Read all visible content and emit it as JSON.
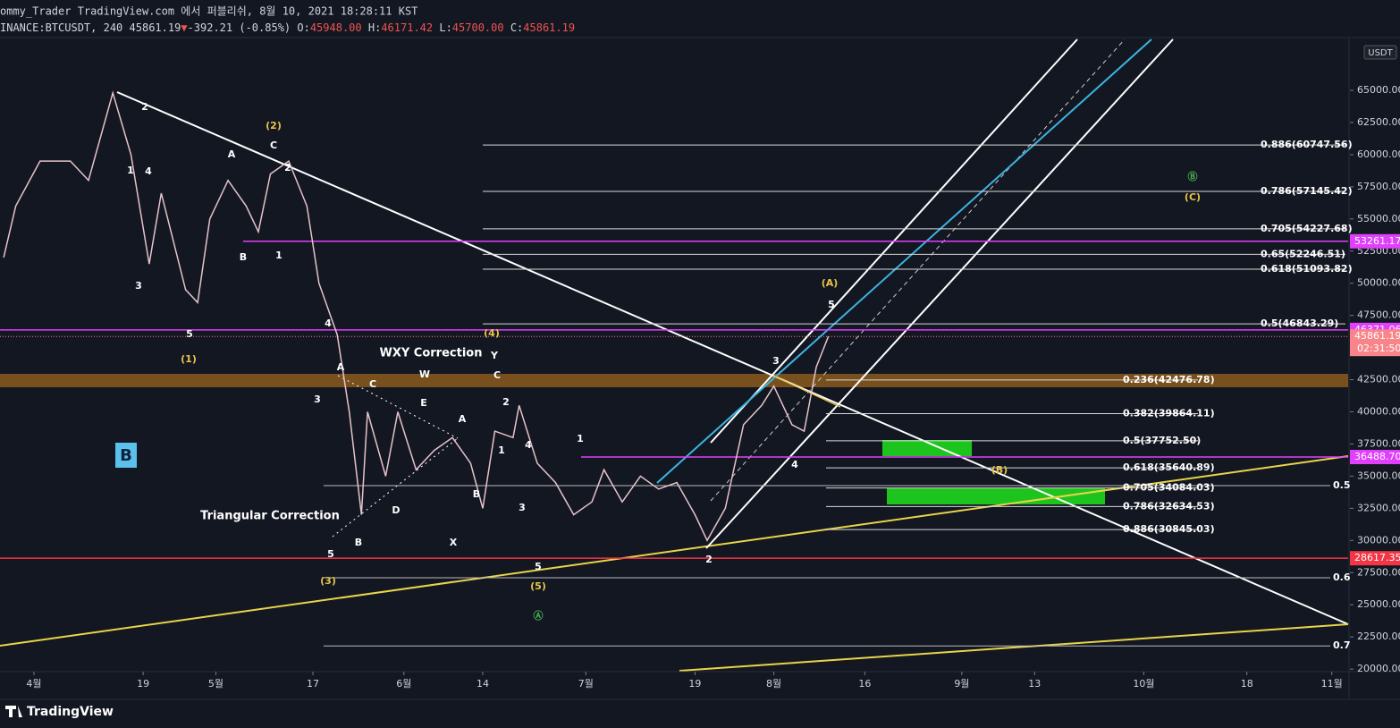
{
  "header": {
    "title": "ommy_Trader TradingView.com 에서 퍼블리쉬, 8월 10, 2021 18:28:11 KST",
    "symbol": "INANCE:BTCUSDT, 240",
    "last": "45861.19",
    "arrow": "▼",
    "change": "-392.21 (-0.85%)",
    "ohlc": [
      {
        "key": "O:",
        "value": "45948.00"
      },
      {
        "key": "H:",
        "value": "46171.42"
      },
      {
        "key": "L:",
        "value": "45700.00"
      },
      {
        "key": "C:",
        "value": "45861.19"
      }
    ]
  },
  "chart_data": {
    "type": "line",
    "color": "#e6c3ca",
    "x": [
      86,
      88,
      92,
      97,
      100,
      104,
      107,
      110,
      112,
      116,
      118,
      120,
      123,
      126,
      128,
      130,
      133,
      136,
      138,
      141,
      143,
      145,
      146,
      149,
      151,
      154,
      157,
      160,
      163,
      165,
      167,
      170,
      171,
      174,
      177,
      180,
      183,
      185,
      188,
      191,
      194,
      197,
      200,
      202,
      205,
      208,
      211,
      213,
      216,
      218,
      220,
      222
    ],
    "values": [
      52000,
      56000,
      59500,
      59500,
      58000,
      64800,
      60000,
      51500,
      57000,
      49500,
      48500,
      55000,
      58000,
      56000,
      54000,
      58500,
      59500,
      56000,
      50000,
      46000,
      40000,
      32000,
      40000,
      35000,
      40000,
      35500,
      37000,
      38000,
      36000,
      32500,
      38500,
      38000,
      40500,
      36000,
      34500,
      32000,
      33000,
      35500,
      33000,
      35000,
      34000,
      34500,
      32000,
      30000,
      32500,
      39000,
      40500,
      42000,
      39000,
      38500,
      43500,
      45861.19
    ],
    "xlim": [
      85.4,
      307.7
    ],
    "ylim": [
      19868,
      68964
    ],
    "xticks": [
      {
        "value": 91,
        "label": "4월"
      },
      {
        "value": 109,
        "label": "19"
      },
      {
        "value": 121,
        "label": "5월"
      },
      {
        "value": 137,
        "label": "17"
      },
      {
        "value": 152,
        "label": "6월"
      },
      {
        "value": 165,
        "label": "14"
      },
      {
        "value": 182,
        "label": "7월"
      },
      {
        "value": 200,
        "label": "19"
      },
      {
        "value": 213,
        "label": "8월"
      },
      {
        "value": 228,
        "label": "16"
      },
      {
        "value": 244,
        "label": "9월"
      },
      {
        "value": 256,
        "label": "13"
      },
      {
        "value": 274,
        "label": "10월"
      },
      {
        "value": 291,
        "label": "18"
      },
      {
        "value": 305,
        "label": "11월"
      }
    ],
    "yticks": [
      {
        "value": 20000,
        "label": "20000.00"
      },
      {
        "value": 22500,
        "label": "22500.00"
      },
      {
        "value": 25000,
        "label": "25000.00"
      },
      {
        "value": 27500,
        "label": "27500.00"
      },
      {
        "value": 30000,
        "label": "30000.00"
      },
      {
        "value": 32500,
        "label": "32500.00"
      },
      {
        "value": 35000,
        "label": "35000.00"
      },
      {
        "value": 37500,
        "label": "37500.00"
      },
      {
        "value": 40000,
        "label": "40000.00"
      },
      {
        "value": 42500,
        "label": "42500.00"
      },
      {
        "value": 47500,
        "label": "47500.00"
      },
      {
        "value": 50000,
        "label": "50000.00"
      },
      {
        "value": 52500,
        "label": "52500.00"
      },
      {
        "value": 55000,
        "label": "55000.00"
      },
      {
        "value": 57500,
        "label": "57500.00"
      },
      {
        "value": 60000,
        "label": "60000.00"
      },
      {
        "value": 62500,
        "label": "62500.00"
      },
      {
        "value": 65000,
        "label": "65000.00"
      }
    ],
    "unit": "USDT",
    "price_lines": [
      {
        "label": "53261.17",
        "value": 53261.17,
        "color": "#e040fb"
      },
      {
        "label": "46371.06",
        "value": 46371.06,
        "color": "#e040fb"
      },
      {
        "label": "36488.70",
        "value": 36488.7,
        "color": "#e040fb"
      },
      {
        "label": "28617.35",
        "value": 28617.35,
        "color": "#f23645"
      }
    ],
    "last_price": {
      "label": "45861.19",
      "value": 45861.19,
      "countdown": "02:31:50",
      "color": "#f7858a"
    },
    "fib_upper": [
      {
        "label": "0.886(60747.56)",
        "value": 60747.56
      },
      {
        "label": "0.786(57145.42)",
        "value": 57145.42
      },
      {
        "label": "0.705(54227.68)",
        "value": 54227.68
      },
      {
        "label": "0.65(52246.51)",
        "value": 52246.51
      },
      {
        "label": "0.618(51093.82)",
        "value": 51093.82
      },
      {
        "label": "0.5(46843.29)",
        "value": 46843.29
      }
    ],
    "fib_lower": [
      {
        "label": "0.236(42476.78)",
        "value": 42476.78
      },
      {
        "label": "0.382(39864.11)",
        "value": 39864.11
      },
      {
        "label": "0.5(37752.50)",
        "value": 37752.5
      },
      {
        "label": "0.618(35640.89)",
        "value": 35640.89
      },
      {
        "label": "0.705(34084.03)",
        "value": 34084.03
      },
      {
        "label": "0.786(32634.53)",
        "value": 32634.53
      },
      {
        "label": "0.886(30845.03)",
        "value": 30845.03
      }
    ],
    "fib_right": [
      {
        "label": "0.5",
        "value": 34260
      },
      {
        "label": "0.6",
        "value": 27100
      },
      {
        "label": "0.7",
        "value": 21800
      }
    ],
    "waves": [
      {
        "text": "2",
        "color": "#ffffff"
      },
      {
        "text": "1",
        "color": "#ffffff"
      },
      {
        "text": "4",
        "color": "#ffffff"
      },
      {
        "text": "3",
        "color": "#ffffff"
      },
      {
        "text": "5",
        "color": "#ffffff"
      },
      {
        "text": "(1)",
        "color": "#e8c44a"
      },
      {
        "text": "A",
        "color": "#ffffff"
      },
      {
        "text": "B",
        "color": "#ffffff"
      },
      {
        "text": "C",
        "color": "#ffffff"
      },
      {
        "text": "(2)",
        "color": "#e8c44a"
      },
      {
        "text": "2",
        "color": "#ffffff"
      },
      {
        "text": "1",
        "color": "#ffffff"
      },
      {
        "text": "4",
        "color": "#ffffff"
      },
      {
        "text": "3",
        "color": "#ffffff"
      },
      {
        "text": "A",
        "color": "#ffffff"
      },
      {
        "text": "C",
        "color": "#ffffff"
      },
      {
        "text": "5",
        "color": "#ffffff"
      },
      {
        "text": "(3)",
        "color": "#e8c44a"
      },
      {
        "text": "B",
        "color": "#ffffff"
      },
      {
        "text": "D",
        "color": "#ffffff"
      },
      {
        "text": "E",
        "color": "#ffffff"
      },
      {
        "text": "W",
        "color": "#ffffff"
      },
      {
        "text": "X",
        "color": "#ffffff"
      },
      {
        "text": "A",
        "color": "#ffffff"
      },
      {
        "text": "B",
        "color": "#ffffff"
      },
      {
        "text": "(4)",
        "color": "#e8c44a"
      },
      {
        "text": "Y",
        "color": "#ffffff"
      },
      {
        "text": "C",
        "color": "#ffffff"
      },
      {
        "text": "2",
        "color": "#ffffff"
      },
      {
        "text": "1",
        "color": "#ffffff"
      },
      {
        "text": "4",
        "color": "#ffffff"
      },
      {
        "text": "3",
        "color": "#ffffff"
      },
      {
        "text": "5",
        "color": "#ffffff"
      },
      {
        "text": "(5)",
        "color": "#e8c44a"
      },
      {
        "text": "Ⓐ",
        "color": "#4caf50"
      },
      {
        "text": "1",
        "color": "#ffffff"
      },
      {
        "text": "2",
        "color": "#ffffff"
      },
      {
        "text": "3",
        "color": "#ffffff"
      },
      {
        "text": "4",
        "color": "#ffffff"
      },
      {
        "text": "5",
        "color": "#ffffff"
      },
      {
        "text": "(A)",
        "color": "#e8c44a"
      },
      {
        "text": "(B)",
        "color": "#e8c44a"
      },
      {
        "text": "Ⓑ",
        "color": "#4caf50"
      },
      {
        "text": "(C)",
        "color": "#e8c44a"
      }
    ],
    "wxy_label": "WXY Correction",
    "triangle_label": "Triangular Correction",
    "box_label": "B"
  },
  "footer": {
    "brand": "TradingView"
  }
}
